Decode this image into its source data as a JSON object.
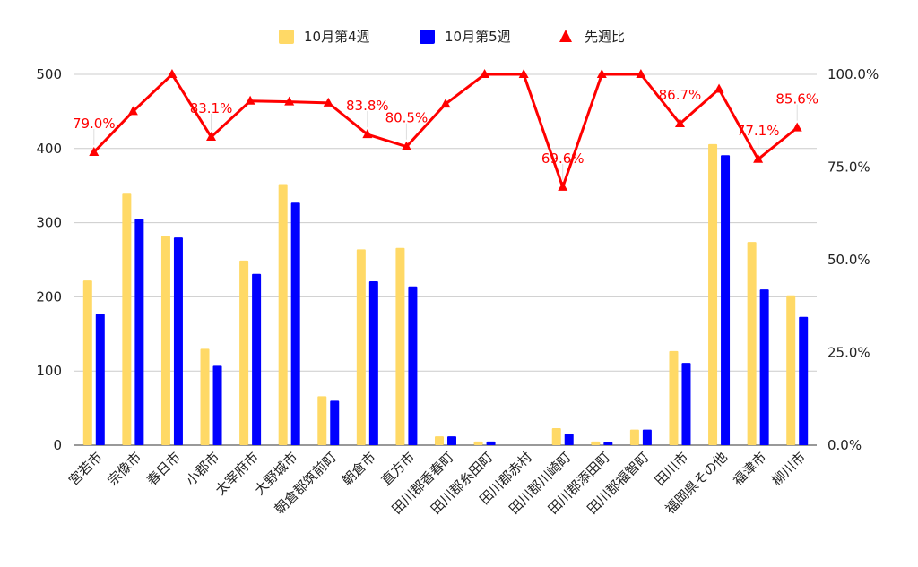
{
  "chart_data": {
    "type": "bar",
    "categories": [
      "宮若市",
      "宗像市",
      "春日市",
      "小郡市",
      "太宰府市",
      "大野城市",
      "朝倉郡筑前町",
      "朝倉市",
      "直方市",
      "田川郡香春町",
      "田川郡糸田町",
      "田川郡赤村",
      "田川郡川崎町",
      "田川郡添田町",
      "田川郡福智町",
      "田川市",
      "福岡県その他",
      "福津市",
      "柳川市"
    ],
    "series": [
      {
        "name": "10月第4週",
        "axis": "left",
        "color": "#FFD966",
        "values": [
          222,
          339,
          282,
          130,
          249,
          352,
          66,
          264,
          266,
          12,
          5,
          0,
          23,
          5,
          21,
          127,
          406,
          274,
          202
        ]
      },
      {
        "name": "10月第5週",
        "axis": "left",
        "color": "#0000FF",
        "values": [
          177,
          305,
          280,
          107,
          231,
          327,
          60,
          221,
          214,
          12,
          5,
          0,
          15,
          4,
          21,
          111,
          391,
          210,
          173
        ]
      },
      {
        "name": "先週比",
        "type": "line",
        "axis": "right",
        "color": "#FF0000",
        "values": [
          79.0,
          90.0,
          100.0,
          83.1,
          92.8,
          92.6,
          92.3,
          83.8,
          80.5,
          92.0,
          100.0,
          100.0,
          69.6,
          100.0,
          100.0,
          86.7,
          96.0,
          77.1,
          85.6
        ],
        "labels": [
          "79.0%",
          "",
          "",
          "83.1%",
          "",
          "",
          "",
          "83.8%",
          "80.5%",
          "",
          "",
          "",
          "69.6%",
          "",
          "",
          "86.7%",
          "",
          "77.1%",
          "85.6%"
        ]
      }
    ],
    "y_left": {
      "min": 0,
      "max": 500,
      "ticks": [
        "0",
        "100",
        "200",
        "300",
        "400",
        "500"
      ]
    },
    "y_right": {
      "min": 0,
      "max": 100,
      "ticks": [
        "0.0%",
        "25.0%",
        "50.0%",
        "75.0%",
        "100.0%"
      ]
    },
    "grid": true,
    "legend": {
      "position": "top"
    }
  }
}
